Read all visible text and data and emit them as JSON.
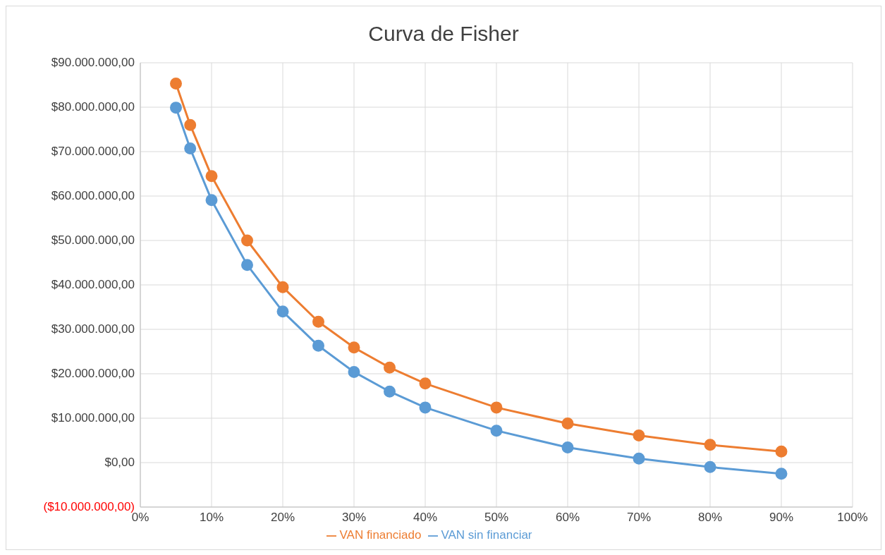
{
  "chart_data": {
    "type": "line",
    "title": "Curva de Fisher",
    "x": [
      5,
      7,
      10,
      15,
      20,
      25,
      30,
      35,
      40,
      50,
      60,
      70,
      80,
      90
    ],
    "series": [
      {
        "name": "VAN sin financiar",
        "color": "#5b9bd5",
        "values": [
          79900000,
          70700000,
          59100000,
          44500000,
          34000000,
          26300000,
          20400000,
          16000000,
          12400000,
          7200000,
          3400000,
          900000,
          -1000000,
          -2500000
        ]
      },
      {
        "name": "VAN financiado",
        "color": "#ed7d31",
        "values": [
          85300000,
          76000000,
          64500000,
          50000000,
          39500000,
          31700000,
          25900000,
          21400000,
          17800000,
          12400000,
          8800000,
          6100000,
          4000000,
          2500000
        ]
      }
    ],
    "xlim": [
      0,
      100
    ],
    "xticks": [
      {
        "value": 0,
        "label": "0%"
      },
      {
        "value": 10,
        "label": "10%"
      },
      {
        "value": 20,
        "label": "20%"
      },
      {
        "value": 30,
        "label": "30%"
      },
      {
        "value": 40,
        "label": "40%"
      },
      {
        "value": 50,
        "label": "50%"
      },
      {
        "value": 60,
        "label": "60%"
      },
      {
        "value": 70,
        "label": "70%"
      },
      {
        "value": 80,
        "label": "80%"
      },
      {
        "value": 90,
        "label": "90%"
      },
      {
        "value": 100,
        "label": "100%"
      }
    ],
    "ylim": [
      -10000000,
      90000000
    ],
    "yticks": [
      {
        "value": -10000000,
        "label": "($10.000.000,00)"
      },
      {
        "value": 0,
        "label": "$0,00"
      },
      {
        "value": 10000000,
        "label": "$10.000.000,00"
      },
      {
        "value": 20000000,
        "label": "$20.000.000,00"
      },
      {
        "value": 30000000,
        "label": "$30.000.000,00"
      },
      {
        "value": 40000000,
        "label": "$40.000.000,00"
      },
      {
        "value": 50000000,
        "label": "$50.000.000,00"
      },
      {
        "value": 60000000,
        "label": "$60.000.000,00"
      },
      {
        "value": 70000000,
        "label": "$70.000.000,00"
      },
      {
        "value": 80000000,
        "label": "$80.000.000,00"
      },
      {
        "value": 90000000,
        "label": "$90.000.000,00"
      }
    ],
    "grid": true,
    "legend": "bottom",
    "marker": "circle",
    "line_style": "solid"
  }
}
